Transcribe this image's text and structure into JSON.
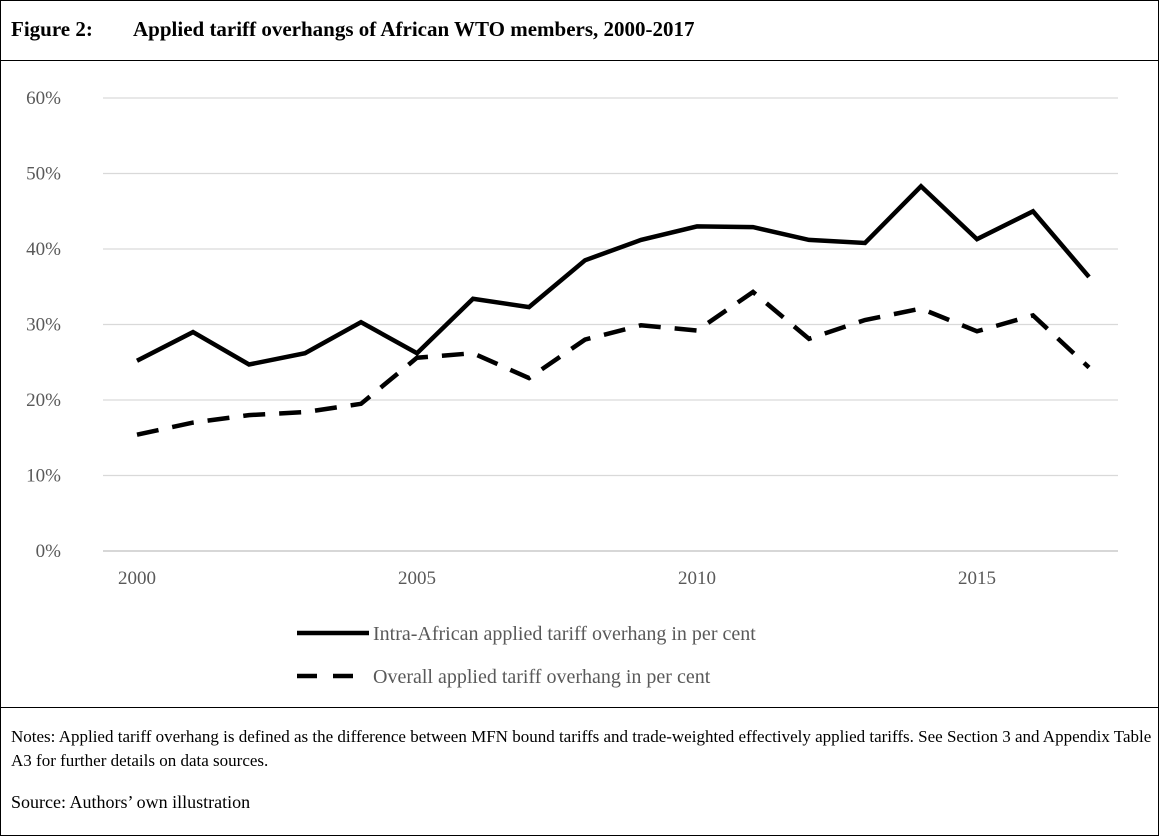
{
  "figure": {
    "label": "Figure 2:",
    "title": "Applied tariff overhangs of African WTO members, 2000-2017"
  },
  "chart_data": {
    "type": "line",
    "x": [
      2000,
      2001,
      2002,
      2003,
      2004,
      2005,
      2006,
      2007,
      2008,
      2009,
      2010,
      2011,
      2012,
      2013,
      2014,
      2015,
      2016,
      2017
    ],
    "x_tick_labels": [
      "2000",
      "2005",
      "2010",
      "2015"
    ],
    "y_tick_labels": [
      "0%",
      "10%",
      "20%",
      "30%",
      "40%",
      "50%",
      "60%"
    ],
    "ylim": [
      0,
      60
    ],
    "grid": true,
    "legend_position": "bottom",
    "series": [
      {
        "name": "Intra-African applied tariff overhang in per cent",
        "style": "solid",
        "color": "#000000",
        "values": [
          25.2,
          29.0,
          24.7,
          26.2,
          30.3,
          26.2,
          33.4,
          32.3,
          38.5,
          41.2,
          43.0,
          42.9,
          41.2,
          40.8,
          48.3,
          41.3,
          45.0,
          36.3
        ]
      },
      {
        "name": "Overall applied tariff overhang in per cent",
        "style": "dashed",
        "color": "#000000",
        "values": [
          15.4,
          17.0,
          18.0,
          18.4,
          19.5,
          25.6,
          26.2,
          22.9,
          28.0,
          29.9,
          29.2,
          34.3,
          28.1,
          30.6,
          32.1,
          29.1,
          31.2,
          24.3
        ]
      }
    ]
  },
  "notes": "Notes: Applied tariff overhang is defined as the difference between MFN bound tariffs and trade-weighted effectively applied tariffs. See Section 3 and Appendix Table A3 for further details on data sources.",
  "source": "Source: Authors’ own illustration"
}
